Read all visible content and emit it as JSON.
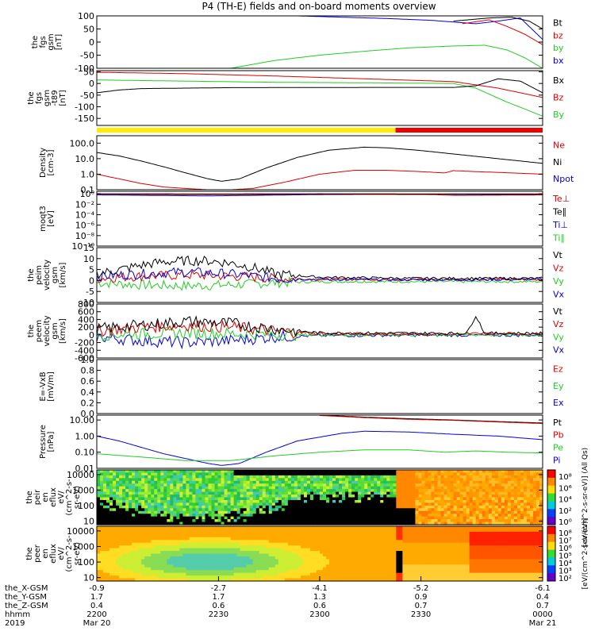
{
  "title": "P4 (TH-E) fields and on-board moments overview",
  "colors": {
    "black": "#000000",
    "red": "#dd0000",
    "green": "#22cc22",
    "blue": "#0000dd",
    "yellow": "#ffee00",
    "bar_red": "#ee0000"
  },
  "chart_data": [
    {
      "id": "fgs_gsm",
      "type": "line",
      "ylabel": [
        "the",
        "fgs",
        "gsm",
        "[nT]"
      ],
      "ylim": [
        -100,
        100
      ],
      "yticks": [
        "100",
        "50",
        "0",
        "-50",
        "-100"
      ],
      "ytick_values": [
        100,
        50,
        0,
        -50,
        -100
      ],
      "legend": [
        {
          "name": "Bt",
          "color": "#000000"
        },
        {
          "name": "bz",
          "color": "#dd0000"
        },
        {
          "name": "by",
          "color": "#22cc22"
        },
        {
          "name": "bx",
          "color": "#0000dd"
        }
      ],
      "series": [
        {
          "name": "bx",
          "color": "#0000dd",
          "x": [
            0.45,
            0.55,
            0.65,
            0.75,
            0.85,
            0.9,
            0.95,
            1.0
          ],
          "y": [
            100,
            95,
            90,
            83,
            70,
            80,
            92,
            10
          ]
        },
        {
          "name": "by",
          "color": "#22cc22",
          "x": [
            0.3,
            0.4,
            0.5,
            0.6,
            0.7,
            0.8,
            0.87,
            0.92,
            0.96,
            1.0
          ],
          "y": [
            -100,
            -70,
            -50,
            -35,
            -22,
            -15,
            -12,
            -30,
            -60,
            -100
          ]
        },
        {
          "name": "bz",
          "color": "#dd0000",
          "x": [
            0.82,
            0.88,
            0.92,
            0.96,
            1.0
          ],
          "y": [
            70,
            85,
            60,
            30,
            -10
          ]
        },
        {
          "name": "Bt",
          "color": "#000000",
          "x": [
            0.8,
            0.88,
            0.93,
            0.97,
            1.0
          ],
          "y": [
            80,
            92,
            95,
            80,
            50
          ]
        }
      ]
    },
    {
      "id": "fgs_gsm_t89",
      "type": "line",
      "ylabel": [
        "the",
        "fgs",
        "gsm",
        "-t89",
        "[nT]"
      ],
      "ylim": [
        -180,
        55
      ],
      "yticks": [
        "50",
        "0",
        "-50",
        "-100",
        "-150"
      ],
      "ytick_values": [
        50,
        0,
        -50,
        -100,
        -150
      ],
      "legend": [
        {
          "name": "Bx",
          "color": "#000000"
        },
        {
          "name": "Bz",
          "color": "#dd0000"
        },
        {
          "name": "By",
          "color": "#22cc22"
        }
      ],
      "series": [
        {
          "name": "Bz",
          "color": "#dd0000",
          "x": [
            0.0,
            0.2,
            0.4,
            0.6,
            0.8,
            0.9,
            1.0
          ],
          "y": [
            48,
            42,
            32,
            20,
            8,
            -20,
            -60
          ]
        },
        {
          "name": "By",
          "color": "#22cc22",
          "x": [
            0.0,
            0.2,
            0.4,
            0.6,
            0.8,
            0.85,
            0.92,
            1.0
          ],
          "y": [
            15,
            10,
            5,
            3,
            0,
            -20,
            -80,
            -140
          ]
        },
        {
          "name": "Bx",
          "color": "#000000",
          "x": [
            0.0,
            0.05,
            0.1,
            0.3,
            0.6,
            0.8,
            0.85,
            0.9,
            0.95,
            1.0
          ],
          "y": [
            -40,
            -28,
            -22,
            -18,
            -17,
            -17,
            -10,
            20,
            10,
            -40
          ]
        }
      ]
    },
    {
      "id": "mode_bar",
      "type": "bar",
      "segments": [
        {
          "from": 0.0,
          "to": 0.67,
          "color": "#ffee00"
        },
        {
          "from": 0.67,
          "to": 1.0,
          "color": "#ee0000"
        }
      ]
    },
    {
      "id": "density",
      "type": "line",
      "scale": "log",
      "ylabel": [
        "Density",
        "[cm-3]"
      ],
      "ylim": [
        0.1,
        300
      ],
      "yticks": [
        "100.0",
        "10.0",
        "1.0",
        "0.1"
      ],
      "ytick_values": [
        100,
        10,
        1,
        0.1
      ],
      "legend": [
        {
          "name": "Ne",
          "color": "#dd0000"
        },
        {
          "name": "Ni",
          "color": "#000000"
        },
        {
          "name": "Npot",
          "color": "#0000dd"
        }
      ],
      "series": [
        {
          "name": "Ni",
          "color": "#000000",
          "x": [
            0.0,
            0.05,
            0.1,
            0.15,
            0.2,
            0.25,
            0.28,
            0.32,
            0.38,
            0.45,
            0.52,
            0.6,
            0.65,
            0.72,
            0.8,
            0.9,
            1.0
          ],
          "y": [
            25,
            15,
            7,
            3,
            1.2,
            0.5,
            0.35,
            0.5,
            2.5,
            12,
            35,
            55,
            50,
            35,
            20,
            10,
            5
          ]
        },
        {
          "name": "Ne",
          "color": "#dd0000",
          "x": [
            0.0,
            0.05,
            0.1,
            0.15,
            0.2,
            0.25,
            0.3,
            0.35,
            0.42,
            0.5,
            0.58,
            0.65,
            0.72,
            0.78,
            0.8,
            0.84,
            0.9,
            1.0
          ],
          "y": [
            1.0,
            0.5,
            0.25,
            0.15,
            0.12,
            0.1,
            0.1,
            0.12,
            0.3,
            1.0,
            1.8,
            1.8,
            1.5,
            1.2,
            1.7,
            1.5,
            1.3,
            1.0
          ]
        }
      ]
    },
    {
      "id": "moqt3",
      "type": "line",
      "scale": "log",
      "ylabel": [
        "moqt3",
        "[eV]"
      ],
      "ylim": [
        1e-10,
        3
      ],
      "yticks": [
        "10⁰",
        "10⁻²",
        "10⁻⁴",
        "10⁻⁶",
        "10⁻⁸",
        "10⁻¹⁰"
      ],
      "ytick_values": [
        1,
        0.01,
        0.0001,
        1e-06,
        1e-08,
        1e-10
      ],
      "legend": [
        {
          "name": "Te⊥",
          "color": "#dd0000"
        },
        {
          "name": "Te∥",
          "color": "#000000"
        },
        {
          "name": "Ti⊥",
          "color": "#0000dd"
        },
        {
          "name": "Ti∥",
          "color": "#22cc22"
        }
      ],
      "series": [
        {
          "name": "Ti∥",
          "color": "#22cc22",
          "x": [
            0.0,
            0.25,
            0.5,
            0.75,
            1.0
          ],
          "y": [
            0.9,
            0.8,
            0.9,
            0.9,
            0.9
          ]
        },
        {
          "name": "Ti⊥",
          "color": "#0000dd",
          "x": [
            0.0,
            0.25,
            0.5,
            0.75,
            1.0
          ],
          "y": [
            0.6,
            0.4,
            0.7,
            0.8,
            0.7
          ]
        },
        {
          "name": "Te⊥",
          "color": "#dd0000",
          "x": [
            0.0,
            0.25,
            0.5,
            0.75,
            0.8,
            1.0
          ],
          "y": [
            0.8,
            0.7,
            0.8,
            0.7,
            0.5,
            0.6
          ]
        },
        {
          "name": "Te∥",
          "color": "#000000",
          "x": [
            0.0,
            0.25,
            0.5,
            0.75,
            1.0
          ],
          "y": [
            1.0,
            0.9,
            1.0,
            0.9,
            0.9
          ]
        }
      ]
    },
    {
      "id": "peim_velocity",
      "type": "line",
      "ylabel": [
        "the",
        "peim",
        "velocity",
        "gsm",
        "[km/s]"
      ],
      "ylim": [
        -10,
        15
      ],
      "yticks": [
        "15",
        "10",
        "5",
        "0",
        "-5",
        "-10"
      ],
      "ytick_values": [
        15,
        10,
        5,
        0,
        -5,
        -10
      ],
      "legend": [
        {
          "name": "Vt",
          "color": "#000000"
        },
        {
          "name": "Vz",
          "color": "#dd0000"
        },
        {
          "name": "Vy",
          "color": "#22cc22"
        },
        {
          "name": "Vx",
          "color": "#0000dd"
        }
      ],
      "series": [
        {
          "name": "Vy",
          "color": "#22cc22",
          "x": [
            0.0,
            0.1,
            0.2,
            0.3,
            0.4,
            0.5,
            0.7,
            1.0
          ],
          "y": [
            -1,
            -2,
            -2.5,
            -2,
            -1,
            -0.5,
            -0.5,
            -0.5
          ]
        },
        {
          "name": "Vz",
          "color": "#dd0000",
          "x": [
            0.0,
            0.1,
            0.2,
            0.3,
            0.4,
            0.5,
            0.7,
            1.0
          ],
          "y": [
            1,
            2,
            2.5,
            2,
            1,
            0.5,
            0.5,
            0.5
          ]
        },
        {
          "name": "Vx",
          "color": "#0000dd",
          "x": [
            0.0,
            0.1,
            0.2,
            0.3,
            0.4,
            0.5,
            0.7,
            1.0
          ],
          "y": [
            2,
            3,
            4,
            3,
            1,
            0.5,
            0.3,
            0.5
          ]
        },
        {
          "name": "Vt",
          "color": "#000000",
          "x": [
            0.0,
            0.05,
            0.1,
            0.15,
            0.2,
            0.25,
            0.3,
            0.35,
            0.4,
            0.5,
            0.7,
            1.0
          ],
          "y": [
            3,
            5,
            7,
            8.5,
            9,
            9,
            8,
            6,
            3,
            1.5,
            1,
            1
          ]
        }
      ]
    },
    {
      "id": "peem_velocity",
      "type": "line",
      "ylabel": [
        "the",
        "peem",
        "velocity",
        "gsm",
        "[km/s]"
      ],
      "ylim": [
        -600,
        800
      ],
      "yticks": [
        "800",
        "600",
        "400",
        "200",
        "0",
        "-200",
        "-400",
        "-600"
      ],
      "ytick_values": [
        800,
        600,
        400,
        200,
        0,
        -200,
        -400,
        -600
      ],
      "legend": [
        {
          "name": "Vt",
          "color": "#000000"
        },
        {
          "name": "Vz",
          "color": "#dd0000"
        },
        {
          "name": "Vy",
          "color": "#22cc22"
        },
        {
          "name": "Vx",
          "color": "#0000dd"
        }
      ],
      "series": [
        {
          "name": "Vx",
          "color": "#0000dd",
          "x": [
            0.0,
            0.1,
            0.2,
            0.3,
            0.4,
            0.5,
            0.7,
            1.0
          ],
          "y": [
            -50,
            -150,
            -200,
            -150,
            -50,
            -20,
            -10,
            -10
          ]
        },
        {
          "name": "Vy",
          "color": "#22cc22",
          "x": [
            0.0,
            0.1,
            0.2,
            0.3,
            0.4,
            0.5,
            0.7,
            1.0
          ],
          "y": [
            0,
            30,
            50,
            30,
            10,
            0,
            0,
            0
          ]
        },
        {
          "name": "Vz",
          "color": "#dd0000",
          "x": [
            0.0,
            0.1,
            0.2,
            0.3,
            0.4,
            0.5,
            0.7,
            1.0
          ],
          "y": [
            100,
            200,
            250,
            200,
            100,
            30,
            20,
            30
          ]
        },
        {
          "name": "Vt",
          "color": "#000000",
          "x": [
            0.0,
            0.1,
            0.2,
            0.3,
            0.4,
            0.5,
            0.7,
            0.83,
            0.85,
            0.87,
            1.0
          ],
          "y": [
            150,
            250,
            350,
            300,
            150,
            50,
            40,
            40,
            500,
            40,
            40
          ]
        }
      ]
    },
    {
      "id": "efield",
      "type": "line",
      "ylabel": [
        "E=-VxB",
        "[mV/m]"
      ],
      "ylim": [
        0,
        1
      ],
      "yticks": [
        "1.0",
        "0.8",
        "0.6",
        "0.4",
        "0.2",
        "0.0"
      ],
      "ytick_values": [
        1,
        0.8,
        0.6,
        0.4,
        0.2,
        0
      ],
      "legend": [
        {
          "name": "Ez",
          "color": "#dd0000"
        },
        {
          "name": "Ey",
          "color": "#22cc22"
        },
        {
          "name": "Ex",
          "color": "#0000dd"
        }
      ],
      "series": []
    },
    {
      "id": "pressure",
      "type": "line",
      "scale": "log",
      "ylabel": [
        "Pressure",
        "[nPa]"
      ],
      "ylim": [
        0.01,
        20
      ],
      "yticks": [
        "10.00",
        "1.00",
        "0.10",
        "0.01"
      ],
      "ytick_values": [
        10,
        1,
        0.1,
        0.01
      ],
      "legend": [
        {
          "name": "Pt",
          "color": "#000000"
        },
        {
          "name": "Pb",
          "color": "#dd0000"
        },
        {
          "name": "Pe",
          "color": "#22cc22"
        },
        {
          "name": "Pi",
          "color": "#0000dd"
        }
      ],
      "series": [
        {
          "name": "Pi",
          "color": "#0000dd",
          "x": [
            0.0,
            0.05,
            0.1,
            0.15,
            0.2,
            0.25,
            0.28,
            0.32,
            0.38,
            0.45,
            0.55,
            0.6,
            0.7,
            0.8,
            0.9,
            1.0
          ],
          "y": [
            1.0,
            0.5,
            0.2,
            0.08,
            0.04,
            0.02,
            0.015,
            0.02,
            0.1,
            0.5,
            1.5,
            2.0,
            1.8,
            1.3,
            1.0,
            0.6
          ]
        },
        {
          "name": "Pe",
          "color": "#22cc22",
          "x": [
            0.0,
            0.1,
            0.2,
            0.3,
            0.4,
            0.5,
            0.6,
            0.7,
            0.78,
            0.85,
            0.92,
            1.0
          ],
          "y": [
            0.08,
            0.05,
            0.03,
            0.03,
            0.06,
            0.1,
            0.14,
            0.14,
            0.1,
            0.12,
            0.1,
            0.09
          ]
        },
        {
          "name": "Pt",
          "color": "#000000",
          "x": [
            0.5,
            0.6,
            0.7,
            0.8,
            0.9,
            1.0
          ],
          "y": [
            20,
            15,
            12,
            10,
            8,
            6.5
          ]
        },
        {
          "name": "Pb",
          "color": "#dd0000",
          "x": [
            0.5,
            0.6,
            0.7,
            0.8,
            0.9,
            1.0
          ],
          "y": [
            19,
            14,
            11,
            9.5,
            7.5,
            6
          ]
        }
      ]
    },
    {
      "id": "peir_eflux",
      "type": "heatmap",
      "scale": "log",
      "ylabel": [
        "the",
        "peir",
        "en",
        "eflux",
        "eV/",
        "(cm^2-s-",
        "sr-eV)"
      ],
      "ylim": [
        6,
        20000
      ],
      "yticks": [
        "10000",
        "1000",
        "100",
        "10"
      ],
      "ytick_values": [
        10000,
        1000,
        100,
        10
      ],
      "variant": "ion"
    },
    {
      "id": "peer_eflux",
      "type": "heatmap",
      "scale": "log",
      "ylabel": [
        "the",
        "peer",
        "en",
        "eflux",
        "eV/",
        "(cm^2-s-",
        "sr-eV)"
      ],
      "ylim": [
        6,
        20000
      ],
      "yticks": [
        "10000",
        "1000",
        "100",
        "10"
      ],
      "ytick_values": [
        10000,
        1000,
        100,
        10
      ],
      "variant": "electron"
    }
  ],
  "colorbars": [
    {
      "label": "[eV/(cm^2-s-sr-eV)] (All Qs)",
      "ticks": [
        "10⁸",
        "10⁶",
        "10⁴",
        "10²",
        "10⁰"
      ]
    },
    {
      "label": "[eV/(cm^2-s-sr-eV)]",
      "ticks": [
        "10⁸",
        "10⁷",
        "10⁶",
        "10⁵",
        "10⁴",
        "10³",
        "10²"
      ]
    }
  ],
  "x_axis": {
    "row_labels": [
      "the_X-GSM",
      "the_Y-GSM",
      "the_Z-GSM",
      "hhmm",
      "2019"
    ],
    "columns": [
      {
        "frac": 0.0,
        "values": [
          "-0.9",
          "1.7",
          "0.4",
          "2200",
          "Mar 20"
        ]
      },
      {
        "frac": 0.273,
        "values": [
          "-2.7",
          "1.7",
          "0.6",
          "2230",
          ""
        ]
      },
      {
        "frac": 0.5,
        "values": [
          "-4.1",
          "1.3",
          "0.6",
          "2300",
          ""
        ]
      },
      {
        "frac": 0.727,
        "values": [
          "-5.2",
          "0.9",
          "0.7",
          "2330",
          ""
        ]
      },
      {
        "frac": 1.0,
        "values": [
          "-6.1",
          "0.4",
          "0.7",
          "0000",
          "Mar 21"
        ]
      }
    ]
  }
}
